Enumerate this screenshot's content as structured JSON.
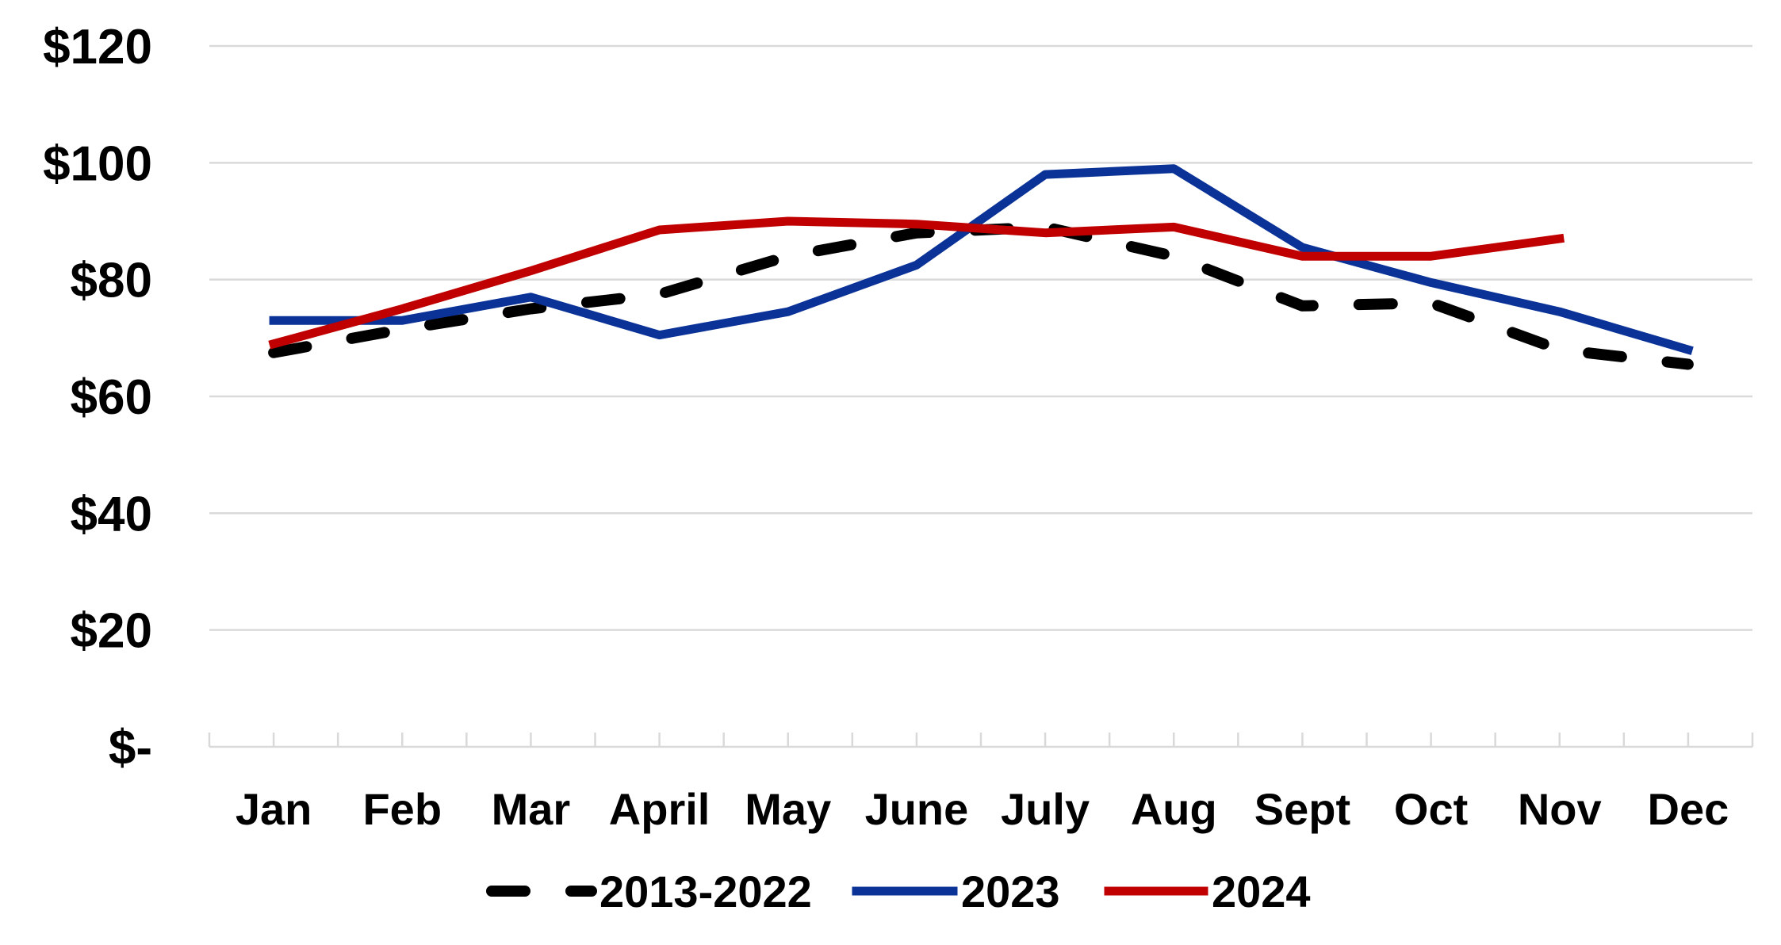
{
  "chart_data": {
    "type": "line",
    "title": "",
    "xlabel": "",
    "ylabel": "",
    "categories": [
      "Jan",
      "Feb",
      "Mar",
      "April",
      "May",
      "June",
      "July",
      "Aug",
      "Sept",
      "Oct",
      "Nov",
      "Dec"
    ],
    "y_ticks": [
      0,
      20,
      40,
      60,
      80,
      100,
      120
    ],
    "y_tick_labels": [
      "$-",
      "$20",
      "$40",
      "$60",
      "$80",
      "$100",
      "$120"
    ],
    "ylim": [
      0,
      120
    ],
    "grid": "horizontal",
    "legend_position": "bottom",
    "series": [
      {
        "name": "2013-2022",
        "color": "#000000",
        "style": "dashed",
        "values": [
          67.5,
          71.5,
          75,
          77.5,
          84,
          88,
          89,
          84,
          75.5,
          76,
          68,
          65.5
        ]
      },
      {
        "name": "2023",
        "color": "#0a3297",
        "style": "solid",
        "values": [
          73,
          73,
          77,
          70.5,
          74.5,
          82.5,
          98,
          99,
          85.5,
          79.5,
          74.5,
          68
        ]
      },
      {
        "name": "2024",
        "color": "#c00000",
        "style": "solid",
        "values": [
          69,
          75,
          81.5,
          88.5,
          90,
          89.5,
          88,
          89,
          84,
          84,
          87,
          null
        ]
      }
    ]
  }
}
